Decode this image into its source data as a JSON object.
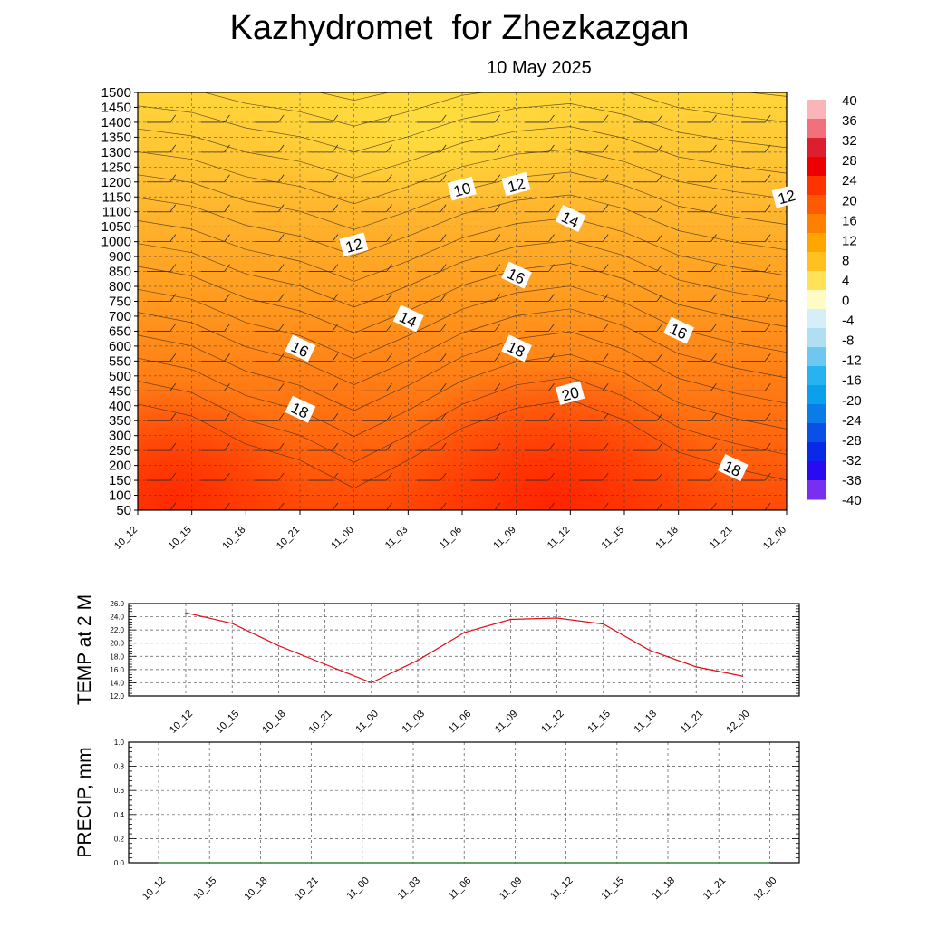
{
  "header": {
    "title": "Kazhydromet  for Zhezkazgan",
    "subtitle": "10 May 2025"
  },
  "time_labels": [
    "10_12",
    "10_15",
    "10_18",
    "10_21",
    "11_00",
    "11_03",
    "11_06",
    "11_09",
    "11_12",
    "11_15",
    "11_18",
    "11_21",
    "12_00"
  ],
  "chart_data": [
    {
      "type": "heatmap",
      "variable": "air temperature with contour lines and wind barbs",
      "x": [
        "10_12",
        "10_15",
        "10_18",
        "10_21",
        "11_00",
        "11_03",
        "11_06",
        "11_09",
        "11_12",
        "11_15",
        "11_18",
        "11_21",
        "12_00"
      ],
      "y": [
        1500,
        1450,
        1400,
        1350,
        1300,
        1250,
        1200,
        1150,
        1100,
        1050,
        1000,
        900,
        850,
        800,
        750,
        700,
        650,
        600,
        550,
        500,
        450,
        400,
        350,
        300,
        250,
        200,
        150,
        100,
        50
      ],
      "colorbar": {
        "levels": [
          40,
          36,
          32,
          28,
          24,
          20,
          16,
          12,
          8,
          4,
          0,
          -4,
          -8,
          -12,
          -16,
          -20,
          -24,
          -28,
          -32,
          -36,
          -40
        ],
        "warm_colors": [
          "#fbb5b9",
          "#f0707b",
          "#dd1e2e",
          "#ee0000",
          "#ff3300",
          "#ff5a00",
          "#ff8000",
          "#ffa500",
          "#ffc020",
          "#ffe25a",
          "#fffbc4"
        ],
        "cool_colors": [
          "#d6eef8",
          "#b0def2",
          "#6ec7ee",
          "#27b2f0",
          "#0aa0ee",
          "#0a7ce8",
          "#0a50e8",
          "#0a28e8",
          "#2a0af0",
          "#7a2ff0"
        ]
      },
      "contour_labels": [
        {
          "text": "10",
          "time": "11_06",
          "level": 1175
        },
        {
          "text": "12",
          "time": "11_09",
          "level": 1190
        },
        {
          "text": "12",
          "time": "12_00",
          "level": 1150
        },
        {
          "text": "14",
          "time": "11_12",
          "level": 1075
        },
        {
          "text": "12",
          "time": "11_00",
          "level": 975
        },
        {
          "text": "16",
          "time": "11_09",
          "level": 835
        },
        {
          "text": "14",
          "time": "11_03",
          "level": 690
        },
        {
          "text": "16",
          "time": "11_18",
          "level": 650
        },
        {
          "text": "16",
          "time": "10_21",
          "level": 590
        },
        {
          "text": "18",
          "time": "11_09",
          "level": 590
        },
        {
          "text": "20",
          "time": "11_12",
          "level": 440
        },
        {
          "text": "18",
          "time": "10_21",
          "level": 385
        },
        {
          "text": "18",
          "time": "11_21",
          "level": 190
        }
      ],
      "surface_temp_profile": [
        25,
        23.5,
        20,
        18,
        14.5,
        18,
        22,
        24.5,
        25.5,
        23,
        19,
        17,
        15.5
      ]
    },
    {
      "type": "line",
      "ylabel": "TEMP at 2 M",
      "categories": [
        "10_12",
        "10_15",
        "10_18",
        "10_21",
        "11_00",
        "11_03",
        "11_06",
        "11_09",
        "11_12",
        "11_15",
        "11_18",
        "11_21",
        "12_00"
      ],
      "values": [
        24.6,
        23.0,
        19.6,
        16.8,
        14.0,
        17.4,
        21.6,
        23.6,
        23.8,
        22.9,
        18.9,
        16.4,
        15.0
      ],
      "ylim": [
        12.0,
        26.0
      ],
      "yticks": [
        "12.0",
        "14.0",
        "16.0",
        "18.0",
        "20.0",
        "22.0",
        "24.0",
        "26.0"
      ],
      "line_color": "#e0101a"
    },
    {
      "type": "line",
      "ylabel": "PRECIP, mm",
      "categories": [
        "10_12",
        "10_15",
        "10_18",
        "10_21",
        "11_00",
        "11_03",
        "11_06",
        "11_09",
        "11_12",
        "11_15",
        "11_18",
        "11_21",
        "12_00"
      ],
      "values": [
        0,
        0,
        0,
        0,
        0,
        0,
        0,
        0,
        0,
        0,
        0,
        0,
        0
      ],
      "ylim": [
        0.0,
        1.0
      ],
      "yticks": [
        "0.0",
        "0.2",
        "0.4",
        "0.6",
        "0.8",
        "1.0"
      ],
      "line_color": "#2a8a2a"
    }
  ]
}
